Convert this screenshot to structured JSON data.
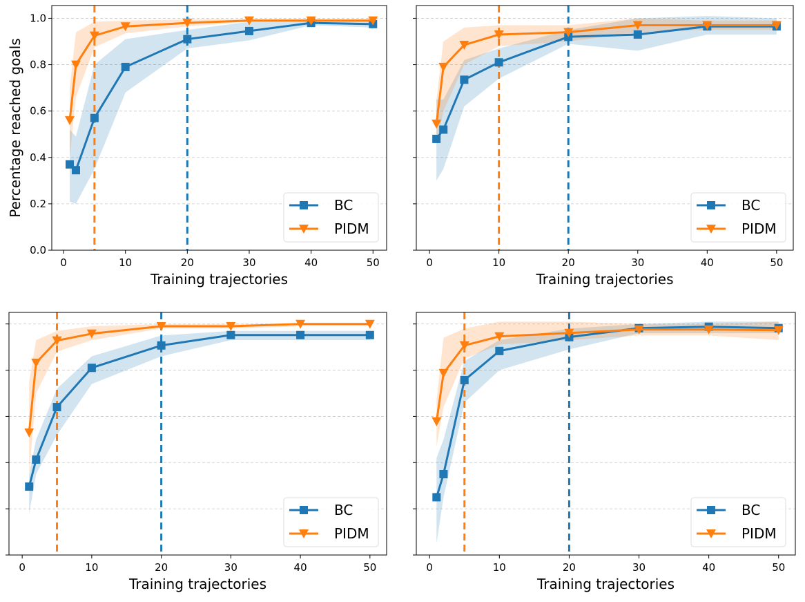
{
  "chart_data": [
    {
      "type": "line",
      "panel": "top-left",
      "xlabel": "Training trajectories",
      "ylabel": "Percentage reached goals",
      "xlim": [
        -1.9,
        52.2
      ],
      "ylim": [
        0,
        1.055
      ],
      "xticks": [
        0,
        10,
        20,
        30,
        40,
        50
      ],
      "yticks": [
        "0.0",
        "0.2",
        "0.4",
        "0.6",
        "0.8",
        "1.0"
      ],
      "show_yticklabels": true,
      "grid": "y dashed",
      "legend": "lower-right",
      "x": [
        1,
        2,
        5,
        10,
        20,
        30,
        40,
        50
      ],
      "series": [
        {
          "name": "BC",
          "color": "#1f77b4",
          "marker": "square",
          "values": [
            0.37,
            0.345,
            0.57,
            0.79,
            0.91,
            0.945,
            0.98,
            0.975
          ],
          "lower": [
            0.21,
            0.2,
            0.35,
            0.68,
            0.87,
            0.905,
            0.97,
            0.96
          ],
          "upper": [
            0.52,
            0.49,
            0.8,
            0.91,
            0.95,
            0.985,
            0.99,
            0.99
          ]
        },
        {
          "name": "PIDM",
          "color": "#ff7f0e",
          "marker": "triangle-down",
          "values": [
            0.56,
            0.8,
            0.925,
            0.965,
            0.98,
            0.99,
            0.99,
            0.99
          ],
          "lower": [
            0.4,
            0.66,
            0.875,
            0.935,
            0.965,
            0.985,
            0.985,
            0.985
          ],
          "upper": [
            0.7,
            0.94,
            0.985,
            0.99,
            0.995,
            0.995,
            0.995,
            0.995
          ]
        }
      ],
      "vlines": [
        {
          "x": 5,
          "color": "#ff7f0e"
        },
        {
          "x": 20,
          "color": "#1f77b4"
        }
      ]
    },
    {
      "type": "line",
      "panel": "top-right",
      "xlabel": "Training trajectories",
      "ylabel": "",
      "xlim": [
        -1.9,
        52.4
      ],
      "ylim": [
        0,
        1.055
      ],
      "xticks": [
        0,
        10,
        20,
        30,
        40,
        50
      ],
      "yticks": [
        "0.0",
        "0.2",
        "0.4",
        "0.6",
        "0.8",
        "1.0"
      ],
      "show_yticklabels": false,
      "grid": "y dashed",
      "legend": "lower-right",
      "x": [
        1,
        2,
        5,
        10,
        20,
        30,
        40,
        50
      ],
      "series": [
        {
          "name": "BC",
          "color": "#1f77b4",
          "marker": "square",
          "values": [
            0.48,
            0.52,
            0.735,
            0.81,
            0.92,
            0.93,
            0.965,
            0.965
          ],
          "lower": [
            0.3,
            0.35,
            0.62,
            0.74,
            0.89,
            0.86,
            0.93,
            0.93
          ],
          "upper": [
            0.65,
            0.65,
            0.82,
            0.87,
            0.95,
            1.0,
            1.01,
            1.0
          ]
        },
        {
          "name": "PIDM",
          "color": "#ff7f0e",
          "marker": "triangle-down",
          "values": [
            0.545,
            0.79,
            0.885,
            0.93,
            0.94,
            0.97,
            0.97,
            0.97
          ],
          "lower": [
            0.45,
            0.6,
            0.8,
            0.88,
            0.9,
            0.94,
            0.95,
            0.95
          ],
          "upper": [
            0.65,
            0.9,
            0.96,
            0.97,
            0.97,
            1.0,
            0.99,
            0.99
          ]
        }
      ],
      "vlines": [
        {
          "x": 10,
          "color": "#ff7f0e"
        },
        {
          "x": 20,
          "color": "#1f77b4"
        }
      ]
    },
    {
      "type": "line",
      "panel": "bottom-left",
      "xlabel": "Training trajectories",
      "ylabel": "",
      "xlim": [
        -1.9,
        52.4
      ],
      "ylim": [
        0,
        1.05
      ],
      "xticks": [
        0,
        10,
        20,
        30,
        40,
        50
      ],
      "yticks": [
        "0.0",
        "0.2",
        "0.4",
        "0.6",
        "0.8",
        "1.0"
      ],
      "show_yticklabels": false,
      "grid": "y dashed",
      "legend": "lower-right",
      "x": [
        1,
        2,
        5,
        10,
        20,
        30,
        40,
        50
      ],
      "series": [
        {
          "name": "BC",
          "color": "#1f77b4",
          "marker": "square",
          "values": [
            0.296,
            0.413,
            0.64,
            0.81,
            0.907,
            0.952,
            0.952,
            0.952
          ],
          "lower": [
            0.18,
            0.35,
            0.52,
            0.74,
            0.86,
            0.93,
            0.93,
            0.93
          ],
          "upper": [
            0.35,
            0.5,
            0.72,
            0.86,
            0.95,
            0.97,
            0.97,
            0.97
          ]
        },
        {
          "name": "PIDM",
          "color": "#ff7f0e",
          "marker": "triangle-down",
          "values": [
            0.53,
            0.832,
            0.928,
            0.958,
            0.99,
            0.99,
            1.0,
            1.0
          ],
          "lower": [
            0.35,
            0.7,
            0.88,
            0.93,
            0.98,
            0.98,
            0.99,
            0.99
          ],
          "upper": [
            0.75,
            0.93,
            0.97,
            0.99,
            1.0,
            1.0,
            1.0,
            1.0
          ]
        }
      ],
      "vlines": [
        {
          "x": 5,
          "color": "#ff7f0e"
        },
        {
          "x": 20,
          "color": "#1f77b4"
        }
      ]
    },
    {
      "type": "line",
      "panel": "bottom-right",
      "xlabel": "Training trajectories",
      "ylabel": "",
      "xlim": [
        -1.9,
        52.4
      ],
      "ylim": [
        0,
        1.05
      ],
      "xticks": [
        0,
        10,
        20,
        30,
        40,
        50
      ],
      "yticks": [
        "0.0",
        "0.2",
        "0.4",
        "0.6",
        "0.8",
        "1.0"
      ],
      "show_yticklabels": false,
      "grid": "y dashed",
      "legend": "lower-right",
      "x": [
        1,
        2,
        5,
        10,
        20,
        30,
        40,
        50
      ],
      "series": [
        {
          "name": "BC",
          "color": "#1f77b4",
          "marker": "square",
          "values": [
            0.25,
            0.35,
            0.757,
            0.883,
            0.943,
            0.982,
            0.988,
            0.982
          ],
          "lower": [
            0.05,
            0.25,
            0.66,
            0.8,
            0.89,
            0.96,
            0.96,
            0.96
          ],
          "upper": [
            0.42,
            0.5,
            0.84,
            0.93,
            0.98,
            1.0,
            1.01,
            1.01
          ]
        },
        {
          "name": "PIDM",
          "color": "#ff7f0e",
          "marker": "triangle-down",
          "values": [
            0.578,
            0.787,
            0.907,
            0.946,
            0.961,
            0.976,
            0.976,
            0.973
          ],
          "lower": [
            0.47,
            0.64,
            0.85,
            0.91,
            0.93,
            0.95,
            0.95,
            0.93
          ],
          "upper": [
            0.67,
            0.94,
            0.98,
            1.01,
            1.01,
            1.0,
            1.0,
            1.01
          ]
        }
      ],
      "vlines": [
        {
          "x": 5,
          "color": "#ff7f0e"
        },
        {
          "x": 20,
          "color": "#1f77b4"
        }
      ]
    }
  ]
}
